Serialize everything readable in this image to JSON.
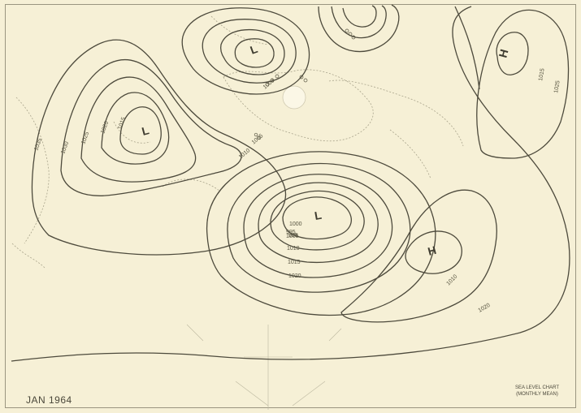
{
  "map": {
    "date_label": "JAN 1964",
    "title": "SEA LEVEL CHART",
    "subtitle": "(MONTHLY MEAN)",
    "pressure_centers": [
      {
        "symbol": "L",
        "kind": "low"
      },
      {
        "symbol": "L",
        "kind": "low"
      },
      {
        "symbol": "L",
        "kind": "low"
      },
      {
        "symbol": "H",
        "kind": "high"
      },
      {
        "symbol": "H",
        "kind": "high"
      }
    ],
    "isobar_labels": [
      "1035",
      "1030",
      "1025",
      "1020",
      "1015",
      "1010",
      "1005",
      "1000",
      "995",
      "1020",
      "1015",
      "1010",
      "1005",
      "1000",
      "995",
      "1010",
      "1020",
      "1025",
      "1015"
    ]
  }
}
